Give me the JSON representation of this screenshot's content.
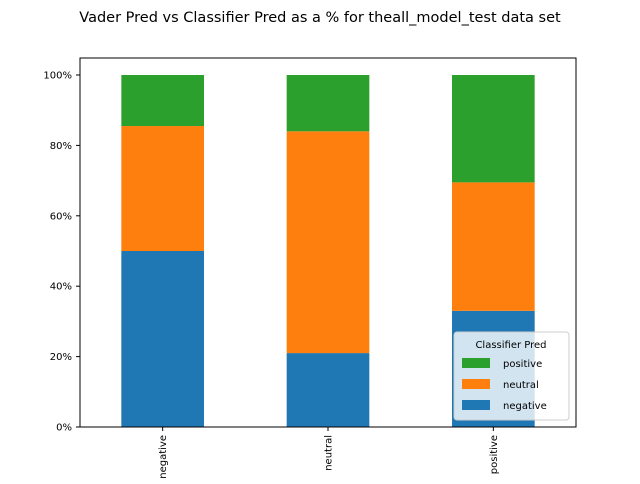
{
  "chart_data": {
    "type": "bar",
    "stacked": true,
    "title": "Vader Pred vs Classifier Pred as a % for theall_model_test data set",
    "xlabel": "",
    "ylabel": "",
    "categories": [
      "negative",
      "neutral",
      "positive"
    ],
    "ylim": [
      0,
      100
    ],
    "yticks": [
      0,
      20,
      40,
      60,
      80,
      100
    ],
    "ytick_labels": [
      "0%",
      "20%",
      "40%",
      "60%",
      "80%",
      "100%"
    ],
    "series": [
      {
        "name": "negative",
        "color": "#1f77b4",
        "values": [
          50.0,
          21.0,
          33.0
        ]
      },
      {
        "name": "neutral",
        "color": "#ff7f0e",
        "values": [
          35.5,
          63.0,
          36.5
        ]
      },
      {
        "name": "positive",
        "color": "#2ca02c",
        "values": [
          14.5,
          16.0,
          30.5
        ]
      }
    ],
    "legend": {
      "title": "Classifier Pred",
      "position": "lower-right",
      "order": [
        "positive",
        "neutral",
        "negative"
      ]
    },
    "grid": false
  }
}
